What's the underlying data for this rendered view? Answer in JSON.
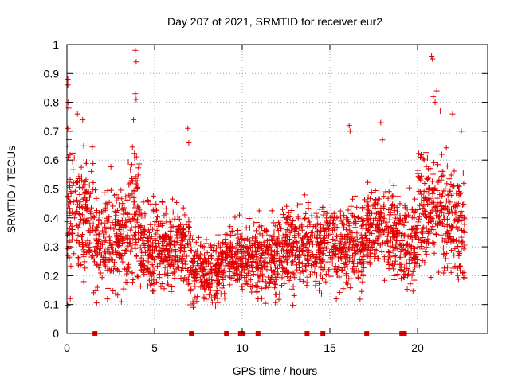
{
  "chart_data": {
    "type": "scatter",
    "title": "Day 207 of 2021, SRMTID for receiver eur2",
    "xlabel": "GPS time / hours",
    "ylabel": "SRMTID / TECUs",
    "xlim": [
      0,
      24
    ],
    "ylim": [
      0,
      1
    ],
    "x_ticks": [
      0,
      5,
      10,
      15,
      20
    ],
    "x_tick_labels": [
      "0",
      "5",
      "10",
      "15",
      "20"
    ],
    "y_ticks": [
      0,
      0.1,
      0.2,
      0.3,
      0.4,
      0.5,
      0.6,
      0.7,
      0.8,
      0.9,
      1
    ],
    "y_tick_labels": [
      "0",
      "0.1",
      "0.2",
      "0.3",
      "0.4",
      "0.5",
      "0.6",
      "0.7",
      "0.8",
      "0.9",
      "1"
    ],
    "grid": true,
    "marker": "+",
    "color": "#e00000",
    "zero_markers_x": [
      1.6,
      7.1,
      9.1,
      9.9,
      10.05,
      10.9,
      13.7,
      14.6,
      17.1,
      19.1,
      19.25
    ],
    "density_profile": [
      {
        "start": 0.0,
        "end": 0.5,
        "center": 0.42,
        "spread": 0.2
      },
      {
        "start": 0.5,
        "end": 1.5,
        "center": 0.42,
        "spread": 0.15
      },
      {
        "start": 1.5,
        "end": 3.5,
        "center": 0.32,
        "spread": 0.12
      },
      {
        "start": 3.5,
        "end": 4.2,
        "center": 0.38,
        "spread": 0.16
      },
      {
        "start": 4.2,
        "end": 7.0,
        "center": 0.3,
        "spread": 0.1
      },
      {
        "start": 7.0,
        "end": 9.0,
        "center": 0.22,
        "spread": 0.08
      },
      {
        "start": 9.0,
        "end": 10.0,
        "center": 0.27,
        "spread": 0.08
      },
      {
        "start": 10.0,
        "end": 12.0,
        "center": 0.25,
        "spread": 0.09
      },
      {
        "start": 12.0,
        "end": 15.0,
        "center": 0.3,
        "spread": 0.1
      },
      {
        "start": 15.0,
        "end": 17.0,
        "center": 0.3,
        "spread": 0.1
      },
      {
        "start": 17.0,
        "end": 19.0,
        "center": 0.35,
        "spread": 0.1
      },
      {
        "start": 19.0,
        "end": 20.0,
        "center": 0.3,
        "spread": 0.1
      },
      {
        "start": 20.0,
        "end": 21.5,
        "center": 0.42,
        "spread": 0.14
      },
      {
        "start": 21.5,
        "end": 22.7,
        "center": 0.38,
        "spread": 0.13
      }
    ],
    "outliers": [
      {
        "x": 0.05,
        "y": 0.88
      },
      {
        "x": 0.05,
        "y": 0.86
      },
      {
        "x": 0.08,
        "y": 0.8
      },
      {
        "x": 0.1,
        "y": 0.78
      },
      {
        "x": 0.05,
        "y": 0.71
      },
      {
        "x": 0.6,
        "y": 0.76
      },
      {
        "x": 0.9,
        "y": 0.74
      },
      {
        "x": 3.9,
        "y": 0.98
      },
      {
        "x": 3.95,
        "y": 0.94
      },
      {
        "x": 3.9,
        "y": 0.83
      },
      {
        "x": 3.95,
        "y": 0.81
      },
      {
        "x": 3.8,
        "y": 0.74
      },
      {
        "x": 6.9,
        "y": 0.71
      },
      {
        "x": 6.95,
        "y": 0.66
      },
      {
        "x": 16.1,
        "y": 0.72
      },
      {
        "x": 16.15,
        "y": 0.7
      },
      {
        "x": 17.9,
        "y": 0.73
      },
      {
        "x": 18.0,
        "y": 0.67
      },
      {
        "x": 20.8,
        "y": 0.96
      },
      {
        "x": 20.85,
        "y": 0.95
      },
      {
        "x": 21.1,
        "y": 0.84
      },
      {
        "x": 20.9,
        "y": 0.82
      },
      {
        "x": 21.0,
        "y": 0.8
      },
      {
        "x": 21.3,
        "y": 0.77
      },
      {
        "x": 22.0,
        "y": 0.76
      },
      {
        "x": 22.5,
        "y": 0.7
      }
    ]
  }
}
